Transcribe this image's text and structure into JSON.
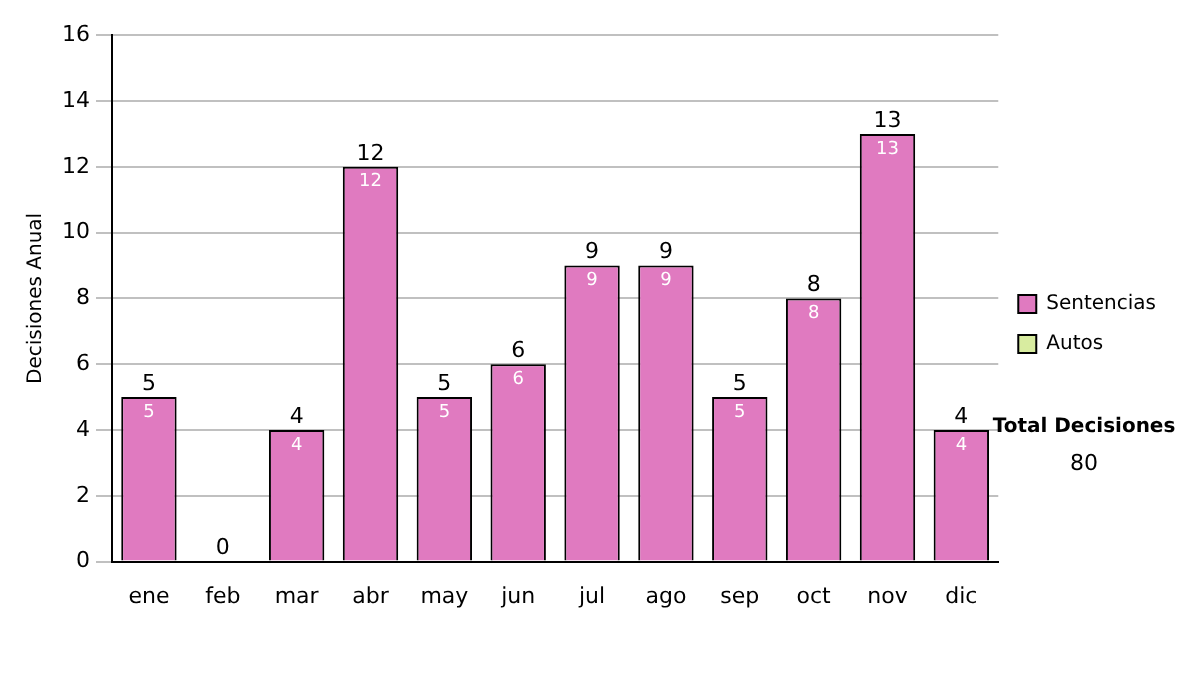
{
  "chart_data": {
    "type": "bar",
    "ylabel": "Decisiones Anual",
    "categories": [
      "ene",
      "feb",
      "mar",
      "abr",
      "may",
      "jun",
      "jul",
      "ago",
      "sep",
      "oct",
      "nov",
      "dic"
    ],
    "series": [
      {
        "name": "Sentencias",
        "color": "#e07ac0",
        "values": [
          5,
          0,
          4,
          12,
          5,
          6,
          9,
          9,
          5,
          8,
          13,
          4
        ],
        "value_labels": [
          "5",
          null,
          "4",
          "12",
          "5",
          "6",
          "9",
          "9",
          "5",
          "8",
          "13",
          "4"
        ]
      },
      {
        "name": "Autos",
        "color": "#d8eca0",
        "values": [
          0,
          0,
          0,
          0,
          0,
          0,
          0,
          0,
          0,
          0,
          0,
          0
        ]
      }
    ],
    "stacked": true,
    "totals": [
      "5",
      "0",
      "4",
      "12",
      "5",
      "6",
      "9",
      "9",
      "5",
      "8",
      "13",
      "4"
    ],
    "ylim": [
      0,
      16
    ],
    "yticks": [
      0,
      2,
      4,
      6,
      8,
      10,
      12,
      14,
      16
    ],
    "grid": "y",
    "legend": "right",
    "annotations": [
      "Total Decisiones",
      "80"
    ]
  }
}
